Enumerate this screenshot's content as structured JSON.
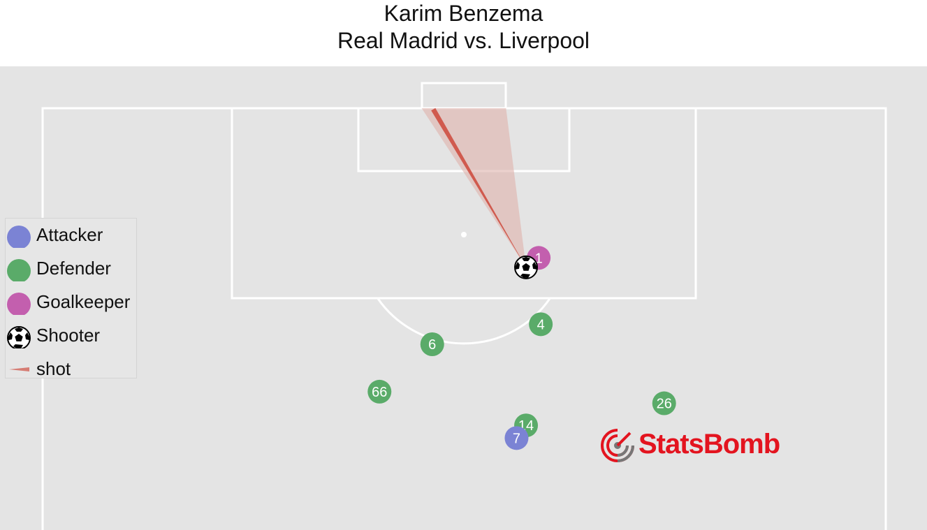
{
  "title": {
    "player": "Karim Benzema",
    "match": "Real Madrid vs. Liverpool"
  },
  "colors": {
    "pitch": "#e4e4e4",
    "lines": "#ffffff",
    "attacker": "#7b83d4",
    "defender": "#5aab69",
    "goalkeeper": "#c35fae",
    "shot": "#d05a4e",
    "shot_cone": "#e0b3ac",
    "brand": "#e3141f"
  },
  "legend": {
    "attacker": "Attacker",
    "defender": "Defender",
    "goalkeeper": "Goalkeeper",
    "shooter": "Shooter",
    "shot": "shot"
  },
  "icons": {
    "shooter": "soccer-ball-icon",
    "shot": "shot-wedge-icon",
    "brand": "statsbomb-target-icon"
  },
  "brand": {
    "name": "StatsBomb"
  },
  "chart_data": {
    "type": "scatter",
    "shooter": {
      "x": 104.9,
      "y": 45.9
    },
    "shot_end": {
      "x": 119.9,
      "y": 37.1
    },
    "goal_posts": [
      36,
      44
    ],
    "players": [
      {
        "number": "1",
        "role": "goalkeeper",
        "x": 105.8,
        "y": 47.1
      },
      {
        "number": "4",
        "role": "defender",
        "x": 99.5,
        "y": 47.3
      },
      {
        "number": "6",
        "role": "defender",
        "x": 97.6,
        "y": 37.0
      },
      {
        "number": "66",
        "role": "defender",
        "x": 93.1,
        "y": 32.0
      },
      {
        "number": "14",
        "role": "defender",
        "x": 89.9,
        "y": 45.9
      },
      {
        "number": "7",
        "role": "attacker",
        "x": 88.7,
        "y": 45.0
      },
      {
        "number": "26",
        "role": "defender",
        "x": 92.0,
        "y": 59.0
      }
    ]
  }
}
